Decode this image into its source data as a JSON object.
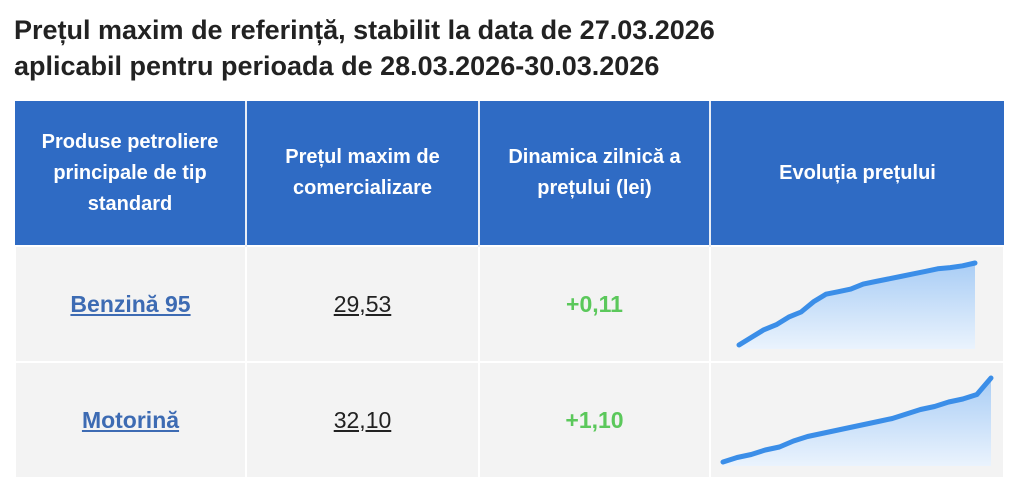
{
  "header": {
    "title": [
      "Prețul maxim de referință, stabilit la data de 27.03.2026",
      "aplicabil pentru perioada de 28.03.2026-30.03.2026"
    ]
  },
  "table": {
    "columns": [
      "Produse petroliere principale de tip standard",
      "Prețul maxim de comercializare",
      "Dinamica zilnică a prețului (lei)",
      "Evoluția prețului"
    ],
    "rows": [
      {
        "product": "Benzină 95",
        "price": "29,53",
        "change": "+0,11",
        "trend": [
          26.3,
          26.6,
          26.9,
          27.1,
          27.4,
          27.6,
          28.0,
          28.3,
          28.4,
          28.5,
          28.7,
          28.8,
          28.9,
          29.0,
          29.1,
          29.2,
          29.3,
          29.35,
          29.42,
          29.53
        ],
        "trend_color": "#3b8ee8"
      },
      {
        "product": "Motorină",
        "price": "32,10",
        "change": "+1,10",
        "trend": [
          26.5,
          26.8,
          27.0,
          27.3,
          27.5,
          27.9,
          28.2,
          28.4,
          28.6,
          28.8,
          29.0,
          29.2,
          29.4,
          29.7,
          30.0,
          30.2,
          30.5,
          30.7,
          31.0,
          32.1
        ],
        "trend_color": "#3b8ee8"
      }
    ]
  }
}
